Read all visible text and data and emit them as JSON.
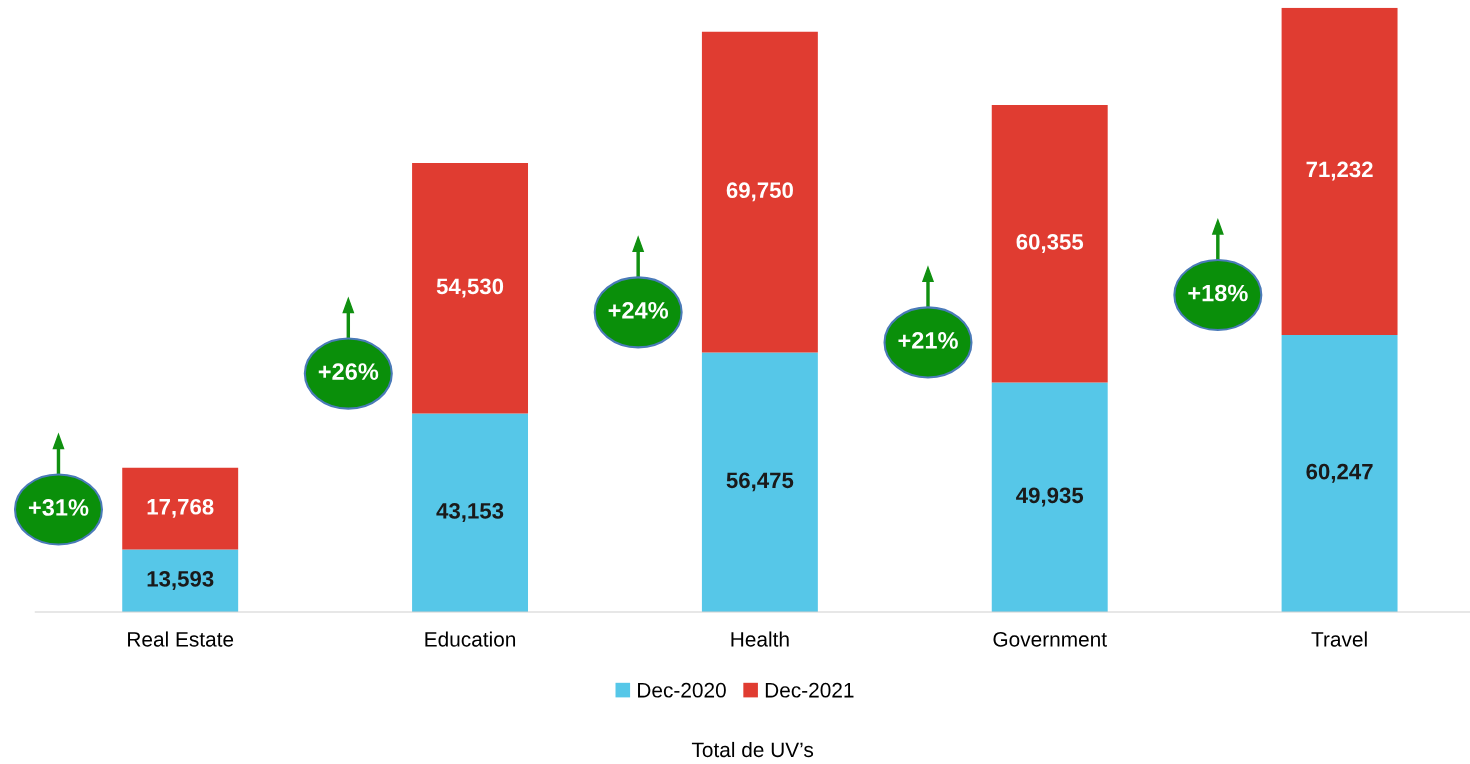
{
  "chart_data": {
    "type": "bar",
    "stacked": true,
    "xlabel": "Total de UV’s",
    "categories": [
      "Real Estate",
      "Education",
      "Health",
      "Government",
      "Travel"
    ],
    "series": [
      {
        "name": "Dec-2020",
        "color": "#56c7e8",
        "values": [
          13593,
          43153,
          56475,
          49935,
          60247
        ],
        "value_labels": [
          "13,593",
          "43,153",
          "56,475",
          "49,935",
          "60,247"
        ]
      },
      {
        "name": "Dec-2021",
        "color": "#e03c31",
        "values": [
          17768,
          54530,
          69750,
          60355,
          71232
        ],
        "value_labels": [
          "17,768",
          "54,530",
          "69,750",
          "60,355",
          "71,232"
        ]
      }
    ],
    "legend": "bottom",
    "grid": false,
    "annotations": [
      "+31%",
      "+26%",
      "+24%",
      "+21%",
      "+18%"
    ]
  }
}
